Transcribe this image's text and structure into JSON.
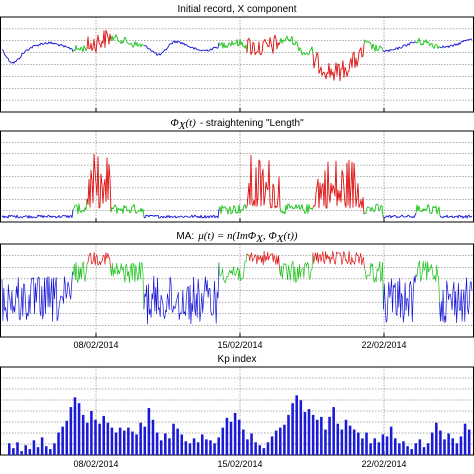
{
  "colors": {
    "background": "#ffffff",
    "axis": "#000000",
    "grid": "#555555",
    "quiet": "#1414d8",
    "moderate": "#19c419",
    "active": "#e01010",
    "kp_bar": "#1a1ad8"
  },
  "chart_data": [
    {
      "type": "line",
      "title": "Initial record, X component",
      "grid": true,
      "x_tick_labels": [
        "08/02/2014",
        "15/02/2014",
        "22/02/2014"
      ],
      "series_colors": [
        "quiet",
        "moderate",
        "active"
      ]
    },
    {
      "type": "line",
      "title_math": "Φ",
      "title_math_sub": "X",
      "title_math_arg": "(t)",
      "title_text": "- straightening \"Length\"",
      "grid": true,
      "x_tick_labels": [
        "08/02/2014",
        "15/02/2014",
        "22/02/2014"
      ],
      "series_colors": [
        "quiet",
        "moderate",
        "active"
      ]
    },
    {
      "type": "line",
      "title_text": "MA:",
      "title_math": "μ(t) = n(ImΦ",
      "title_math_sub": "X",
      "title_math_mid": ", Φ",
      "title_math_sub2": "X",
      "title_math_end": "(t))",
      "grid": true,
      "x_tick_labels": [
        "08/02/2014",
        "15/02/2014",
        "22/02/2014"
      ],
      "series_colors": [
        "quiet",
        "moderate",
        "active"
      ]
    },
    {
      "type": "bar",
      "title": "Kp index",
      "grid": true,
      "x_tick_labels": [
        "08/02/2014",
        "15/02/2014",
        "22/02/2014"
      ],
      "ylim": [
        0,
        9
      ],
      "values": [
        1.2,
        0.7,
        1.3,
        0.4,
        1.0,
        0.6,
        1.5,
        0.8,
        1.8,
        0.9,
        0.6,
        1.2,
        2.3,
        2.9,
        3.5,
        4.9,
        5.9,
        5.3,
        4.1,
        3.3,
        4.5,
        3.6,
        3.2,
        4.0,
        3.3,
        2.8,
        2.3,
        2.8,
        2.5,
        2.8,
        2.4,
        2.1,
        3.3,
        2.9,
        4.8,
        3.6,
        2.3,
        1.5,
        2.2,
        1.7,
        3.2,
        2.7,
        2.1,
        1.4,
        1.2,
        1.7,
        1.3,
        2.1,
        1.6,
        1.5,
        1.2,
        1.8,
        2.8,
        3.8,
        3.4,
        4.3,
        3.6,
        2.6,
        1.6,
        2.2,
        1.3,
        1.0,
        0.7,
        1.3,
        1.9,
        2.5,
        2.8,
        3.1,
        4.1,
        5.3,
        6.1,
        5.6,
        4.4,
        4.7,
        4.1,
        3.6,
        3.9,
        2.6,
        3.9,
        4.9,
        3.2,
        2.6,
        3.6,
        3.0,
        2.6,
        2.3,
        1.7,
        2.3,
        1.2,
        1.7,
        1.3,
        2.1,
        1.9,
        2.9,
        1.7,
        1.2,
        1.4,
        0.9,
        0.6,
        1.2,
        1.6,
        0.8,
        1.2,
        2.3,
        3.3,
        2.5,
        1.6,
        2.2,
        1.7,
        1.2,
        1.9,
        3.2,
        2.6
      ]
    }
  ]
}
